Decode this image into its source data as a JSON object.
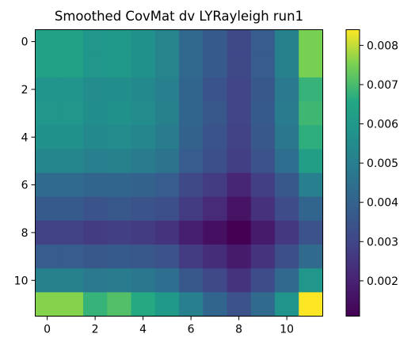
{
  "chart_data": {
    "type": "heatmap",
    "title": "Smoothed CovMat dv LYRayleigh run1",
    "xlabel": "",
    "ylabel": "",
    "colormap": "viridis",
    "x_ticks": [
      "0",
      "2",
      "4",
      "6",
      "8",
      "10"
    ],
    "y_ticks": [
      "0",
      "2",
      "4",
      "6",
      "8",
      "10"
    ],
    "colorbar": {
      "min": 0.0011,
      "max": 0.0084,
      "ticks": [
        "0.002",
        "0.003",
        "0.004",
        "0.005",
        "0.006",
        "0.007",
        "0.008"
      ]
    },
    "rows": 12,
    "cols": 12,
    "values": [
      [
        0.0063,
        0.0063,
        0.0059,
        0.006,
        0.0057,
        0.0052,
        0.0042,
        0.0037,
        0.0031,
        0.0038,
        0.0051,
        0.0075
      ],
      [
        0.0063,
        0.0063,
        0.0059,
        0.006,
        0.0057,
        0.0052,
        0.0042,
        0.0037,
        0.0031,
        0.0038,
        0.0051,
        0.0075
      ],
      [
        0.0058,
        0.0058,
        0.0055,
        0.0056,
        0.0054,
        0.005,
        0.0041,
        0.0035,
        0.003,
        0.0036,
        0.0048,
        0.0068
      ],
      [
        0.0059,
        0.0059,
        0.0056,
        0.0057,
        0.0055,
        0.0051,
        0.0041,
        0.0036,
        0.003,
        0.0037,
        0.0049,
        0.0069
      ],
      [
        0.0057,
        0.0057,
        0.0054,
        0.0055,
        0.0053,
        0.0049,
        0.004,
        0.0035,
        0.0029,
        0.0036,
        0.0047,
        0.0067
      ],
      [
        0.0053,
        0.0053,
        0.005,
        0.0051,
        0.0049,
        0.0046,
        0.0038,
        0.0033,
        0.0028,
        0.0034,
        0.0044,
        0.0062
      ],
      [
        0.0043,
        0.0043,
        0.0041,
        0.0041,
        0.004,
        0.0038,
        0.0031,
        0.0027,
        0.0021,
        0.0028,
        0.0036,
        0.005
      ],
      [
        0.0037,
        0.0037,
        0.0035,
        0.0036,
        0.0035,
        0.0033,
        0.0027,
        0.0022,
        0.0016,
        0.0024,
        0.0032,
        0.0041
      ],
      [
        0.0029,
        0.0029,
        0.0027,
        0.0028,
        0.0027,
        0.0025,
        0.0019,
        0.0015,
        0.0011,
        0.0018,
        0.0026,
        0.0034
      ],
      [
        0.0038,
        0.0038,
        0.0036,
        0.0037,
        0.0036,
        0.0034,
        0.0027,
        0.0023,
        0.0018,
        0.0025,
        0.0033,
        0.0043
      ],
      [
        0.0051,
        0.0051,
        0.0048,
        0.0049,
        0.0047,
        0.0044,
        0.0036,
        0.0031,
        0.0025,
        0.0032,
        0.0042,
        0.0059
      ],
      [
        0.0076,
        0.0076,
        0.0068,
        0.0071,
        0.0066,
        0.006,
        0.005,
        0.0041,
        0.0034,
        0.0043,
        0.0058,
        0.0084
      ]
    ]
  }
}
